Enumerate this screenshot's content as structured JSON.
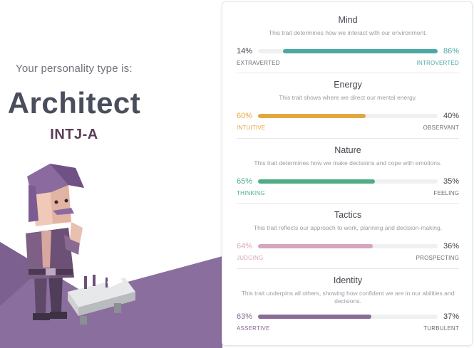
{
  "result": {
    "intro": "Your personality type is:",
    "type_name": "Architect",
    "type_code": "INTJ-A"
  },
  "colors": {
    "mind": "#4aa9a4",
    "energy": "#e2a83e",
    "nature": "#4fad86",
    "tactics": "#d6a5bf",
    "identity": "#8a6c98",
    "purple_bg": "#8a6f9e"
  },
  "traits": [
    {
      "title": "Mind",
      "description": "This trait determines how we interact with our environment.",
      "left_pct": "14%",
      "right_pct": "86%",
      "left_label": "EXTRAVERTED",
      "right_label": "INTROVERTED",
      "dominant": "right",
      "value": 0.86,
      "color": "#4aa9a4"
    },
    {
      "title": "Energy",
      "description": "This trait shows where we direct our mental energy.",
      "left_pct": "60%",
      "right_pct": "40%",
      "left_label": "INTUITIVE",
      "right_label": "OBSERVANT",
      "dominant": "left",
      "value": 0.6,
      "color": "#e2a83e"
    },
    {
      "title": "Nature",
      "description": "This trait determines how we make decisions and cope with emotions.",
      "left_pct": "65%",
      "right_pct": "35%",
      "left_label": "THINKING",
      "right_label": "FEELING",
      "dominant": "left",
      "value": 0.65,
      "color": "#4fad86"
    },
    {
      "title": "Tactics",
      "description": "This trait reflects our approach to work, planning and decision-making.",
      "left_pct": "64%",
      "right_pct": "36%",
      "left_label": "JUDGING",
      "right_label": "PROSPECTING",
      "dominant": "left",
      "value": 0.64,
      "color": "#d6a5bf"
    },
    {
      "title": "Identity",
      "description": "This trait underpins all others, showing how confident we are in our abilities and decisions.",
      "left_pct": "63%",
      "right_pct": "37%",
      "left_label": "ASSERTIVE",
      "right_label": "TURBULENT",
      "dominant": "left",
      "value": 0.63,
      "color": "#8a6c98"
    }
  ]
}
